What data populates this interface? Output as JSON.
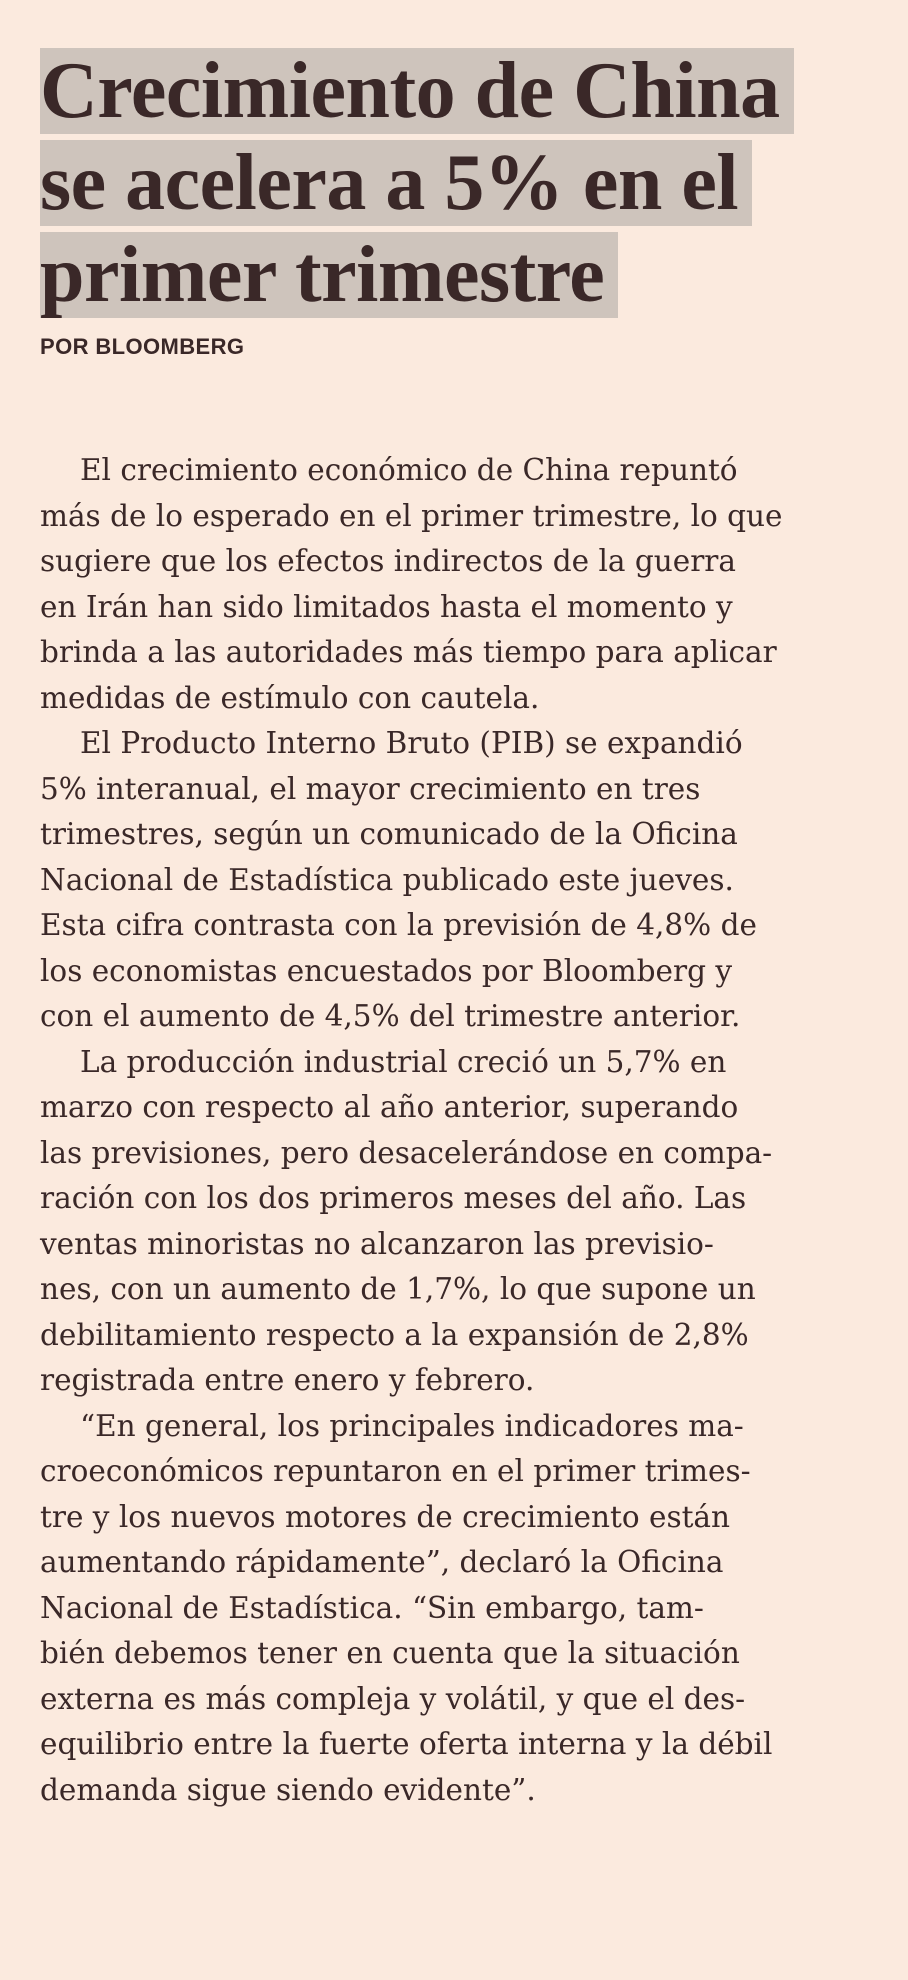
{
  "article": {
    "headline_lines": [
      "Crecimiento de China",
      "se acelera a 5% en el",
      "primer trimestre"
    ],
    "byline": "POR BLOOMBERG",
    "paragraphs": [
      [
        "El crecimiento económico de China repuntó",
        "más de lo esperado en el primer trimestre, lo que",
        "sugiere que los efectos indirectos de la guerra",
        "en Irán han sido limitados hasta el momento y",
        "brinda a las autoridades más tiempo para aplicar",
        "medidas de estímulo con cautela."
      ],
      [
        "El Producto Interno Bruto (PIB) se expandió",
        "5% interanual, el mayor crecimiento en tres",
        "trimestres, según un comunicado de la Oficina",
        "Nacional de Estadística publicado este jueves.",
        "Esta cifra contrasta con la previsión de 4,8% de",
        "los economistas encuestados por Bloomberg y",
        "con el aumento de 4,5% del trimestre anterior."
      ],
      [
        "La producción industrial creció un 5,7% en",
        "marzo con respecto al año anterior, superando",
        "las previsiones, pero desacelerándose en compa-",
        "ración con los dos primeros meses del año. Las",
        "ventas minoristas no alcanzaron las previsio-",
        "nes, con un aumento de 1,7%, lo que supone un",
        "debilitamiento respecto a la expansión de 2,8%",
        "registrada entre enero y febrero."
      ],
      [
        "“En general, los principales indicadores ma-",
        "croeconómicos repuntaron en el primer trimes-",
        "tre y los nuevos motores de crecimiento están",
        "aumentando rápidamente”, declaró la Oficina",
        "Nacional de Estadística. “Sin embargo, tam-",
        "bién debemos tener en cuenta que la situación",
        "externa es más compleja y volátil, y que el des-",
        "equilibrio entre la fuerte oferta interna y la débil",
        "demanda sigue siendo evidente”."
      ]
    ]
  }
}
